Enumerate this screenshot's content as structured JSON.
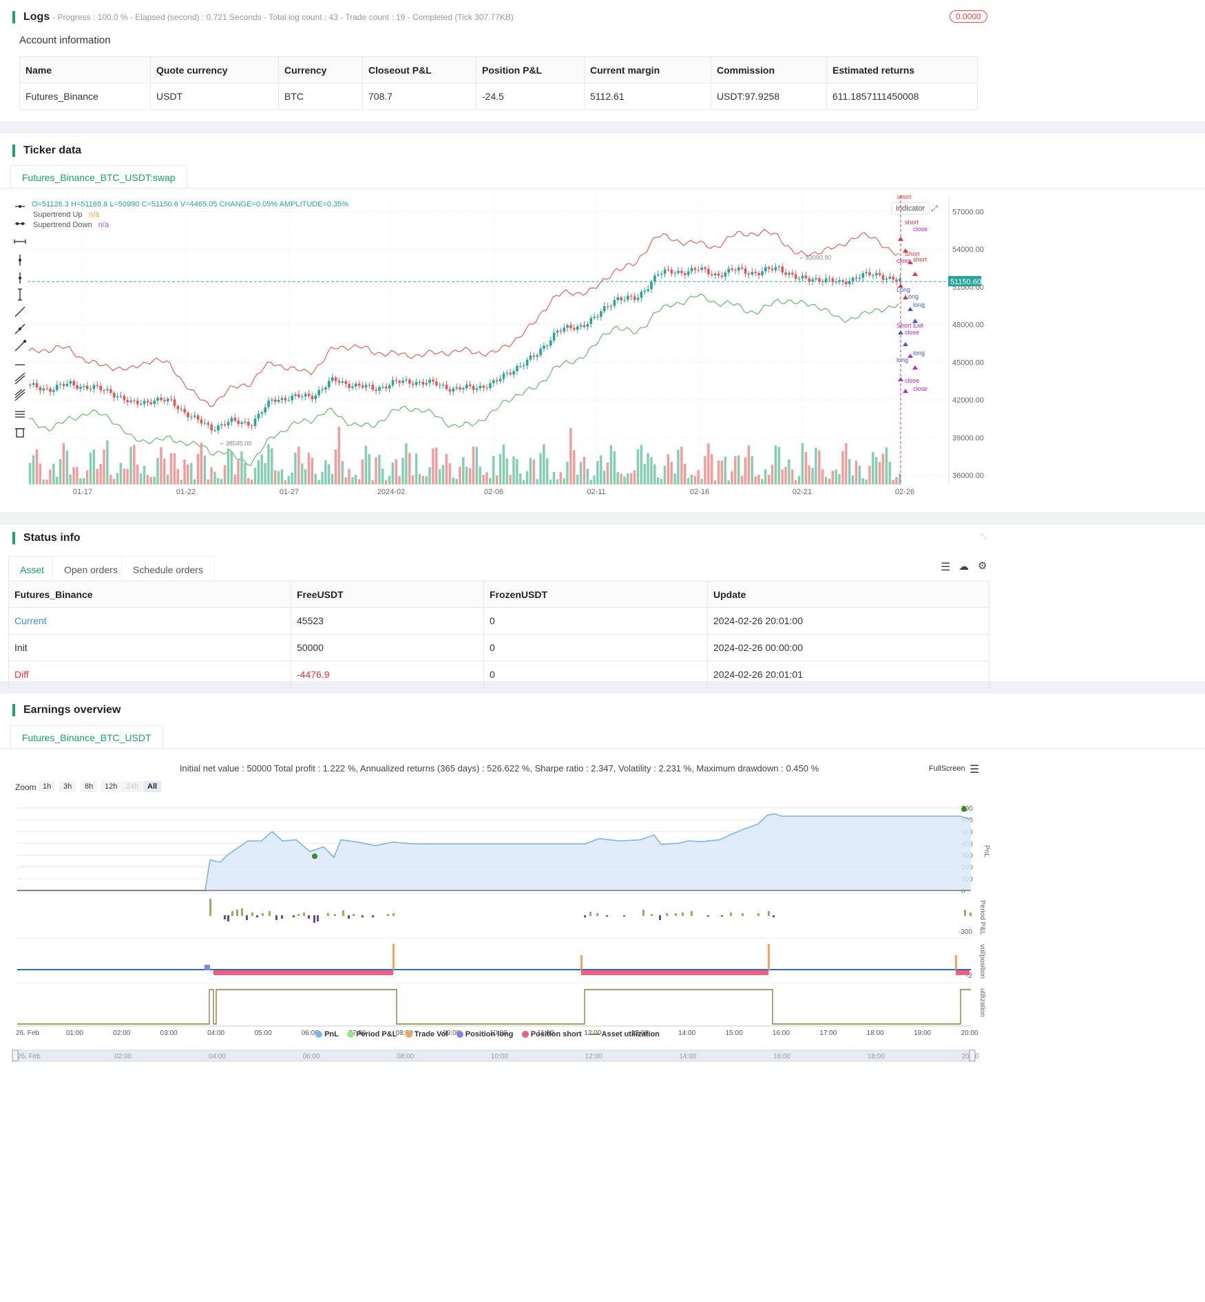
{
  "logs": {
    "title": "Logs",
    "summary": "- Progress : 100.0 % - Elapsed (second) : 0.721  Seconds - Total log count : 43 - Trade count : 19 - Completed (Tick 307.77KB)",
    "badge": "0.0000"
  },
  "account": {
    "title": "Account information",
    "columns": [
      "Name",
      "Quote currency",
      "Currency",
      "Closeout P&L",
      "Position P&L",
      "Current margin",
      "Commission",
      "Estimated returns"
    ],
    "row": [
      "Futures_Binance",
      "USDT",
      "BTC",
      "708.7",
      "-24.5",
      "5112.61",
      "USDT:97.9258",
      "611.1857111450008"
    ]
  },
  "ticker": {
    "title": "Ticker data",
    "tab": "Futures_Binance_BTC_USDT:swap",
    "ohlc": "O=51126.3 H=51169.8 L=50990 C=51150.6 V=4465.05 CHANGE=0.05% AMPLITUDE=0.35%",
    "legend": [
      {
        "name": "Supertrend Up",
        "value": "n/a",
        "color": "#f7a234"
      },
      {
        "name": "Supertrend Down",
        "value": "n/a",
        "color": "#9c5ed6"
      }
    ],
    "indicator_btn": "Indicator",
    "price_label": "51150.60",
    "high_label": "53090.90",
    "low_label": "38545.00",
    "marker_texts": [
      "Short",
      "short",
      "close",
      "close",
      "Short",
      "short",
      "Long",
      "Long",
      "long",
      "Short Exit",
      "close",
      "long",
      "long",
      "close",
      "close"
    ]
  },
  "chart_data": {
    "type": "candlestick",
    "y_ticks": [
      "57000.00",
      "54000.00",
      "51000.00",
      "48000.00",
      "45000.00",
      "42000.00",
      "39000.00",
      "36000.00"
    ],
    "x_ticks": [
      "01-17",
      "01-22",
      "01-27",
      "2024-02",
      "02-06",
      "02-11",
      "02-16",
      "02-21",
      "02-26"
    ],
    "ylim": [
      35000,
      58000
    ],
    "close_path": [
      {
        "x": "01-14",
        "y": 42800
      },
      {
        "x": "01-15",
        "y": 42600
      },
      {
        "x": "01-16",
        "y": 43000
      },
      {
        "x": "01-17",
        "y": 42700
      },
      {
        "x": "01-18",
        "y": 42400
      },
      {
        "x": "01-19",
        "y": 41400
      },
      {
        "x": "01-20",
        "y": 41700
      },
      {
        "x": "01-21",
        "y": 41600
      },
      {
        "x": "01-22",
        "y": 40300
      },
      {
        "x": "01-23",
        "y": 39500
      },
      {
        "x": "01-24",
        "y": 40000
      },
      {
        "x": "01-25",
        "y": 39900
      },
      {
        "x": "01-26",
        "y": 41800
      },
      {
        "x": "01-27",
        "y": 41900
      },
      {
        "x": "01-28",
        "y": 42100
      },
      {
        "x": "01-29",
        "y": 43300
      },
      {
        "x": "01-30",
        "y": 42900
      },
      {
        "x": "01-31",
        "y": 42600
      },
      {
        "x": "2024-02",
        "y": 43100
      },
      {
        "x": "02-02",
        "y": 43200
      },
      {
        "x": "02-03",
        "y": 43000
      },
      {
        "x": "02-04",
        "y": 42600
      },
      {
        "x": "02-05",
        "y": 42700
      },
      {
        "x": "02-06",
        "y": 43100
      },
      {
        "x": "02-07",
        "y": 44300
      },
      {
        "x": "02-08",
        "y": 45200
      },
      {
        "x": "02-09",
        "y": 47200
      },
      {
        "x": "02-10",
        "y": 47500
      },
      {
        "x": "02-11",
        "y": 48300
      },
      {
        "x": "02-12",
        "y": 49900
      },
      {
        "x": "02-13",
        "y": 49700
      },
      {
        "x": "02-14",
        "y": 51800
      },
      {
        "x": "02-15",
        "y": 51900
      },
      {
        "x": "02-16",
        "y": 52100
      },
      {
        "x": "02-17",
        "y": 51700
      },
      {
        "x": "02-18",
        "y": 52100
      },
      {
        "x": "02-19",
        "y": 51800
      },
      {
        "x": "02-20",
        "y": 52300
      },
      {
        "x": "02-21",
        "y": 51300
      },
      {
        "x": "02-22",
        "y": 51400
      },
      {
        "x": "02-23",
        "y": 51000
      },
      {
        "x": "02-24",
        "y": 51600
      },
      {
        "x": "02-25",
        "y": 51700
      },
      {
        "x": "02-26",
        "y": 51150
      }
    ]
  },
  "status": {
    "title": "Status info",
    "tabs": [
      "Asset",
      "Open orders",
      "Schedule orders"
    ],
    "columns": [
      "Futures_Binance",
      "FreeUSDT",
      "FrozenUSDT",
      "Update"
    ],
    "rows": [
      [
        "Current",
        "45523",
        "0",
        "2024-02-26 20:01:00"
      ],
      [
        "Init",
        "50000",
        "0",
        "2024-02-26 00:00:00"
      ],
      [
        "Diff",
        "-4476.9",
        "0",
        "2024-02-26 20:01:01"
      ]
    ]
  },
  "earnings": {
    "title": "Earnings overview",
    "tab": "Futures_Binance_BTC_USDT",
    "summary": "Initial net value : 50000  Total profit : 1.222 %, Annualized returns (365 days) : 526.622 %, Sharpe ratio : 2.347, Volatility : 2.231 %, Maximum drawdown : 0.450 %",
    "fullscreen": "FullScreen",
    "zoom_label": "Zoom",
    "zoom_options": [
      "1h",
      "3h",
      "8h",
      "12h",
      "24h",
      "All"
    ],
    "pnl_ticks": [
      "700",
      "600",
      "500",
      "400",
      "300",
      "200",
      "100",
      "0"
    ],
    "period_tick": "-300",
    "vol_tick": "-2",
    "axis_labels": [
      "PnL",
      "Period P&L",
      "vol/position",
      "utilization"
    ],
    "time_ticks": [
      "26. Feb",
      "01:00",
      "02:00",
      "03:00",
      "04:00",
      "05:00",
      "06:00",
      "07:00",
      "08:00",
      "09:00",
      "10:00",
      "11:00",
      "12:00",
      "13:00",
      "14:00",
      "15:00",
      "16:00",
      "17:00",
      "18:00",
      "19:00",
      "20:00"
    ],
    "nav_ticks": [
      "26. Feb",
      "02:00",
      "04:00",
      "06:00",
      "08:00",
      "10:00",
      "12:00",
      "14:00",
      "16:00",
      "18:00",
      "20:00"
    ],
    "legend": [
      {
        "name": "PnL",
        "color": "#7cb5ec"
      },
      {
        "name": "Period P&L",
        "color": "#90ed7d"
      },
      {
        "name": "Trade Vol",
        "color": "#f7a35c"
      },
      {
        "name": "Position long",
        "color": "#8085e9"
      },
      {
        "name": "Position short",
        "color": "#f15c80"
      },
      {
        "name": "Asset utilization",
        "color": "#8d7a3c"
      }
    ]
  },
  "colors": {
    "accent": "#18a577",
    "up": "#26a69a",
    "down": "#ef5350",
    "st_up": "#4caf50",
    "st_down": "#f44336"
  }
}
